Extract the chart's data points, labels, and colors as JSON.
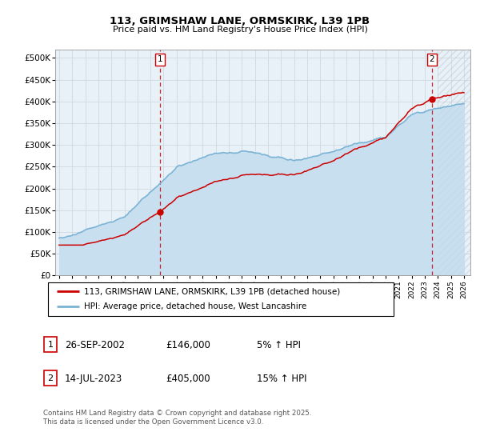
{
  "title1": "113, GRIMSHAW LANE, ORMSKIRK, L39 1PB",
  "title2": "Price paid vs. HM Land Registry's House Price Index (HPI)",
  "ylabel_ticks": [
    "£0",
    "£50K",
    "£100K",
    "£150K",
    "£200K",
    "£250K",
    "£300K",
    "£350K",
    "£400K",
    "£450K",
    "£500K"
  ],
  "ytick_values": [
    0,
    50000,
    100000,
    150000,
    200000,
    250000,
    300000,
    350000,
    400000,
    450000,
    500000
  ],
  "ylim": [
    0,
    520000
  ],
  "xlim_start": 1994.7,
  "xlim_end": 2026.5,
  "sale1_x": 2002.73,
  "sale1_y": 146000,
  "sale1_label": "1",
  "sale2_x": 2023.54,
  "sale2_y": 405000,
  "sale2_label": "2",
  "legend_line1": "113, GRIMSHAW LANE, ORMSKIRK, L39 1PB (detached house)",
  "legend_line2": "HPI: Average price, detached house, West Lancashire",
  "table_row1": [
    "1",
    "26-SEP-2002",
    "£146,000",
    "5% ↑ HPI"
  ],
  "table_row2": [
    "2",
    "14-JUL-2023",
    "£405,000",
    "15% ↑ HPI"
  ],
  "footer": "Contains HM Land Registry data © Crown copyright and database right 2025.\nThis data is licensed under the Open Government Licence v3.0.",
  "line_color_red": "#cc0000",
  "line_color_blue": "#7ab3d4",
  "fill_color_blue": "#c8dff0",
  "grid_color": "#d0d8e0",
  "background_color": "#e8f0f8",
  "sale_marker_color": "#cc0000",
  "dashed_line_color": "#cc0000",
  "hatch_color": "#c0c8d0"
}
